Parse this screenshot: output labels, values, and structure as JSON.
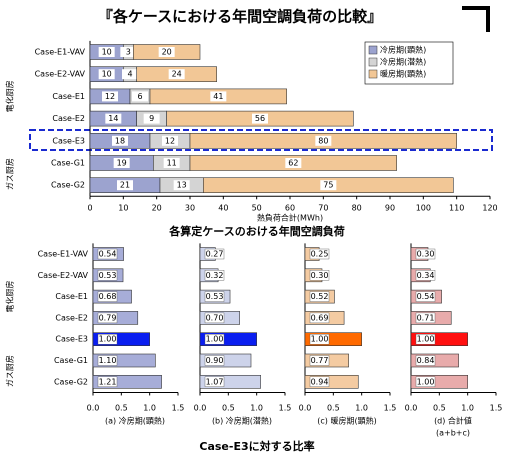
{
  "page_title": "『各ケースにおける年間空調負荷の比較』",
  "caption": "Case-E3に対する比率",
  "chart_data": [
    {
      "type": "bar",
      "orientation": "horizontal",
      "stacked": true,
      "title": "各算定ケースのおける年間空調負荷",
      "xlabel": "熱負荷合計(MWh)",
      "categories": [
        "Case-E1-VAV",
        "Case-E2-VAV",
        "Case-E1",
        "Case-E2",
        "Case-E3",
        "Case-G1",
        "Case-G2"
      ],
      "group_labels": [
        "電化厨房",
        "ガス厨房"
      ],
      "series": [
        {
          "name": "冷房期(顕熱)",
          "color": "#9ca3cf",
          "values": [
            10,
            10,
            12,
            14,
            18,
            19,
            21
          ]
        },
        {
          "name": "冷房期(潜熱)",
          "color": "#d4d4d4",
          "values": [
            3,
            4,
            6,
            9,
            12,
            11,
            13
          ]
        },
        {
          "name": "暖房期(顕熱)",
          "color": "#f2c796",
          "values": [
            20,
            24,
            41,
            56,
            80,
            62,
            75
          ]
        }
      ],
      "xlim": [
        0,
        120
      ],
      "xticks": [
        0,
        10,
        20,
        30,
        40,
        50,
        60,
        70,
        80,
        90,
        100,
        110,
        120
      ]
    },
    {
      "type": "bar",
      "orientation": "horizontal",
      "title": "(a) 冷房期(顕熱)",
      "categories": [
        "Case-E1-VAV",
        "Case-E2-VAV",
        "Case-E1",
        "Case-E2",
        "Case-E3",
        "Case-G1",
        "Case-G2"
      ],
      "group_labels": [
        "電化厨房",
        "ガス厨房"
      ],
      "values": [
        0.54,
        0.53,
        0.68,
        0.79,
        1.0,
        1.1,
        1.21
      ],
      "value_labels": [
        "0.54",
        "0.53",
        "0.68",
        "0.79",
        "1.00",
        "1.10",
        "1.21"
      ],
      "colors": [
        "#a7add8",
        "#a7add8",
        "#a7add8",
        "#a7add8",
        "#0a1ef0",
        "#a7add8",
        "#a7add8"
      ],
      "xlim": [
        0,
        1.5
      ],
      "xticks": [
        {
          "value": 0,
          "label": "0.0"
        },
        0.5,
        {
          "value": 1,
          "label": "1.0"
        },
        1.5
      ]
    },
    {
      "type": "bar",
      "orientation": "horizontal",
      "title": "(b) 冷房期(潜熱)",
      "values": [
        0.27,
        0.32,
        0.53,
        0.7,
        1.0,
        0.9,
        1.07
      ],
      "value_labels": [
        "0.27",
        "0.32",
        "0.53",
        "0.70",
        "1.00",
        "0.90",
        "1.07"
      ],
      "colors": [
        "#cdd3ea",
        "#cdd3ea",
        "#cdd3ea",
        "#cdd3ea",
        "#0a1ef0",
        "#cdd3ea",
        "#cdd3ea"
      ],
      "xlim": [
        0,
        1.5
      ],
      "xticks": [
        {
          "value": 0,
          "label": "0.0"
        },
        0.5,
        {
          "value": 1,
          "label": "1.0"
        },
        1.5
      ]
    },
    {
      "type": "bar",
      "orientation": "horizontal",
      "title": "(c) 暖房期(顕熱)",
      "values": [
        0.25,
        0.3,
        0.52,
        0.69,
        1.0,
        0.77,
        0.94
      ],
      "value_labels": [
        "0.25",
        "0.30",
        "0.52",
        "0.69",
        "1.00",
        "0.77",
        "0.94"
      ],
      "colors": [
        "#f4cba2",
        "#f4cba2",
        "#f4cba2",
        "#f4cba2",
        "#ff6a00",
        "#f4cba2",
        "#f4cba2"
      ],
      "xlim": [
        0,
        1.5
      ],
      "xticks": [
        {
          "value": 0,
          "label": "0.0"
        },
        0.5,
        {
          "value": 1,
          "label": "1.0"
        },
        1.5
      ]
    },
    {
      "type": "bar",
      "orientation": "horizontal",
      "title": "(d) 合計値",
      "subtitle": "(a+b+c)",
      "values": [
        0.3,
        0.34,
        0.54,
        0.71,
        1.0,
        0.84,
        1.0
      ],
      "value_labels": [
        "0.30",
        "0.34",
        "0.54",
        "0.71",
        "1.00",
        "0.84",
        "1.00"
      ],
      "colors": [
        "#e8abab",
        "#e8abab",
        "#e8abab",
        "#e8abab",
        "#ff1010",
        "#e8abab",
        "#e8abab"
      ],
      "xlim": [
        0,
        1.5
      ],
      "xticks": [
        {
          "value": 0,
          "label": "0.0"
        },
        0.5,
        {
          "value": 1,
          "label": "1.0"
        },
        1.5
      ]
    }
  ]
}
